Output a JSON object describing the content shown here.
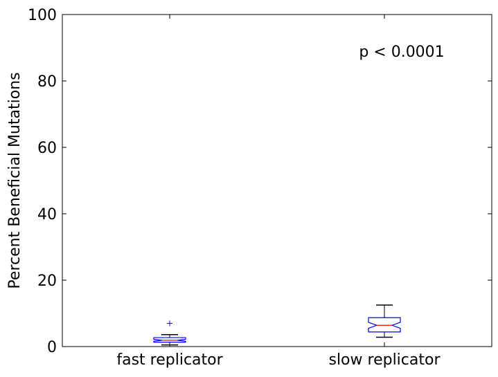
{
  "chart_data": {
    "type": "box",
    "title": "",
    "xlabel": "",
    "ylabel": "Percent Beneficial Mutations",
    "ylim": [
      0,
      100
    ],
    "yticks": [
      0,
      20,
      40,
      60,
      80,
      100
    ],
    "grid": false,
    "notched": true,
    "annotation": "p < 0.0001",
    "categories": [
      "fast replicator",
      "slow replicator"
    ],
    "boxes": [
      {
        "label": "fast replicator",
        "whisker_low": 0.5,
        "q1": 1.3,
        "median": 1.9,
        "q3": 2.7,
        "whisker_high": 3.6,
        "notch_low": 1.6,
        "notch_high": 2.2,
        "outliers": [
          7.0
        ]
      },
      {
        "label": "slow replicator",
        "whisker_low": 2.8,
        "q1": 4.4,
        "median": 6.4,
        "q3": 8.7,
        "whisker_high": 12.5,
        "notch_low": 5.5,
        "notch_high": 7.3,
        "outliers": []
      }
    ],
    "colors": {
      "box": "#0000ff",
      "median": "#ff0000",
      "whisker": "#000000",
      "outlier": "#0000ff",
      "axes": "#000000"
    }
  }
}
